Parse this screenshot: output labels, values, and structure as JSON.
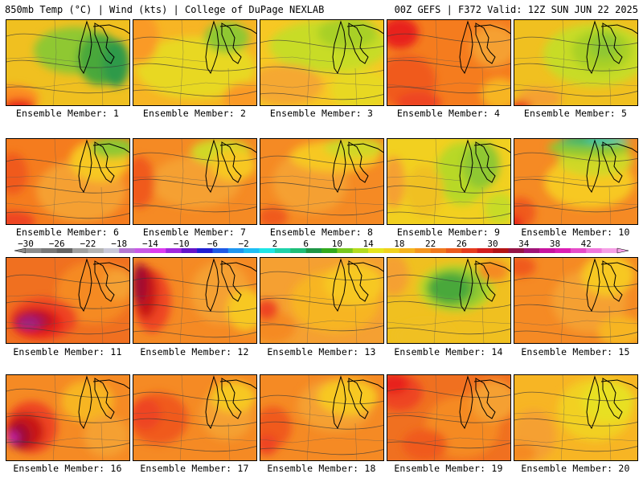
{
  "header": {
    "left": "850mb Temp (°C) | Wind (kts) | College of DuPage NEXLAB",
    "right": "00Z GEFS | F372 Valid: 12Z SUN JUN 22 2025"
  },
  "member_label_prefix": "Ensemble Member: ",
  "members": [
    {
      "number": 1,
      "base": "#f0c020",
      "blobs": [
        [
          "#8fc830",
          0.55,
          0.35,
          0.55,
          0.45
        ],
        [
          "#4aa83a",
          0.75,
          0.45,
          0.3,
          0.5
        ],
        [
          "#2f9a4a",
          0.88,
          0.5,
          0.18,
          0.45
        ],
        [
          "#fc8c20",
          0.05,
          0.9,
          0.35,
          0.25
        ],
        [
          "#e8221a",
          0.1,
          1.0,
          0.22,
          0.15
        ]
      ]
    },
    {
      "number": 2,
      "base": "#f7b524",
      "blobs": [
        [
          "#b8d828",
          0.55,
          0.5,
          0.55,
          0.45
        ],
        [
          "#e8d820",
          0.5,
          0.55,
          0.8,
          0.6
        ],
        [
          "#8fc830",
          0.75,
          0.2,
          0.3,
          0.3
        ],
        [
          "#fa9a28",
          0.05,
          0.2,
          0.25,
          0.5
        ],
        [
          "#fa9a28",
          0.9,
          0.9,
          0.3,
          0.3
        ]
      ]
    },
    {
      "number": 3,
      "base": "#f7c824",
      "blobs": [
        [
          "#c8dc28",
          0.55,
          0.3,
          0.8,
          0.5
        ],
        [
          "#a8d028",
          0.7,
          0.15,
          0.4,
          0.3
        ],
        [
          "#f5a832",
          0.2,
          0.75,
          0.5,
          0.4
        ],
        [
          "#e8d820",
          0.8,
          0.8,
          0.4,
          0.4
        ]
      ]
    },
    {
      "number": 4,
      "base": "#f57c1e",
      "blobs": [
        [
          "#f05a1e",
          0.15,
          0.7,
          0.4,
          0.5
        ],
        [
          "#e8221a",
          0.1,
          0.15,
          0.25,
          0.3
        ],
        [
          "#f5a032",
          0.85,
          0.3,
          0.3,
          0.4
        ],
        [
          "#f7b524",
          0.9,
          0.85,
          0.25,
          0.3
        ],
        [
          "#ee4420",
          0.25,
          0.95,
          0.3,
          0.2
        ]
      ]
    },
    {
      "number": 5,
      "base": "#f0c020",
      "blobs": [
        [
          "#c8dc28",
          0.65,
          0.4,
          0.7,
          0.6
        ],
        [
          "#a8d028",
          0.7,
          0.35,
          0.4,
          0.4
        ],
        [
          "#8fc830",
          0.72,
          0.3,
          0.2,
          0.25
        ],
        [
          "#f5a032",
          0.2,
          0.9,
          0.3,
          0.2
        ],
        [
          "#e8221a",
          0.05,
          1.0,
          0.15,
          0.1
        ]
      ]
    },
    {
      "number": 6,
      "base": "#f57c1e",
      "blobs": [
        [
          "#f5a032",
          0.6,
          0.6,
          0.6,
          0.6
        ],
        [
          "#f7c824",
          0.75,
          0.25,
          0.4,
          0.4
        ],
        [
          "#8fc830",
          0.85,
          0.1,
          0.3,
          0.2
        ],
        [
          "#f05a1e",
          0.05,
          0.4,
          0.2,
          0.4
        ],
        [
          "#ee4420",
          0.05,
          0.95,
          0.3,
          0.2
        ]
      ]
    },
    {
      "number": 7,
      "base": "#f58a24",
      "blobs": [
        [
          "#f5a032",
          0.5,
          0.5,
          0.6,
          0.5
        ],
        [
          "#d0d828",
          0.7,
          0.15,
          0.4,
          0.25
        ],
        [
          "#f7c824",
          0.8,
          0.3,
          0.3,
          0.3
        ],
        [
          "#f05a1e",
          0.05,
          0.5,
          0.2,
          0.5
        ]
      ]
    },
    {
      "number": 8,
      "base": "#f58a24",
      "blobs": [
        [
          "#f5a032",
          0.4,
          0.5,
          0.5,
          0.6
        ],
        [
          "#f7c824",
          0.6,
          0.2,
          0.6,
          0.3
        ],
        [
          "#d0d828",
          0.75,
          0.1,
          0.4,
          0.2
        ],
        [
          "#f05a1e",
          0.1,
          0.9,
          0.2,
          0.2
        ]
      ]
    },
    {
      "number": 9,
      "base": "#f2d020",
      "blobs": [
        [
          "#b8d828",
          0.6,
          0.4,
          0.35,
          0.6
        ],
        [
          "#8fc830",
          0.75,
          0.3,
          0.25,
          0.45
        ],
        [
          "#f5a032",
          0.05,
          0.5,
          0.15,
          0.5
        ],
        [
          "#f0c020",
          0.3,
          0.6,
          0.25,
          0.5
        ],
        [
          "#c8dc28",
          0.9,
          0.8,
          0.2,
          0.3
        ]
      ]
    },
    {
      "number": 10,
      "base": "#f58a24",
      "blobs": [
        [
          "#f7c824",
          0.6,
          0.5,
          0.6,
          0.5
        ],
        [
          "#d0d828",
          0.65,
          0.25,
          0.5,
          0.3
        ],
        [
          "#8fc830",
          0.6,
          0.1,
          0.55,
          0.18
        ],
        [
          "#2fb870",
          0.6,
          0.02,
          0.4,
          0.1
        ],
        [
          "#20d8d8",
          0.75,
          0.0,
          0.3,
          0.05
        ],
        [
          "#f05a1e",
          0.05,
          0.85,
          0.2,
          0.3
        ],
        [
          "#e8221a",
          0.0,
          1.0,
          0.1,
          0.2
        ]
      ]
    },
    {
      "number": 11,
      "base": "#f07020",
      "blobs": [
        [
          "#f58a24",
          0.7,
          0.4,
          0.5,
          0.6
        ],
        [
          "#ee4420",
          0.3,
          0.7,
          0.45,
          0.4
        ],
        [
          "#e8221a",
          0.25,
          0.75,
          0.35,
          0.3
        ],
        [
          "#c81818",
          0.22,
          0.72,
          0.28,
          0.22
        ],
        [
          "#b01040",
          0.22,
          0.72,
          0.2,
          0.15
        ],
        [
          "#a02080",
          0.18,
          0.75,
          0.16,
          0.12
        ],
        [
          "#f5a032",
          0.9,
          0.3,
          0.2,
          0.3
        ]
      ]
    },
    {
      "number": 12,
      "base": "#f58a24",
      "blobs": [
        [
          "#ee4420",
          0.15,
          0.5,
          0.25,
          0.6
        ],
        [
          "#c81818",
          0.1,
          0.4,
          0.15,
          0.5
        ],
        [
          "#a01030",
          0.05,
          0.3,
          0.1,
          0.4
        ],
        [
          "#f5a032",
          0.7,
          0.4,
          0.4,
          0.6
        ],
        [
          "#f7c824",
          0.9,
          0.6,
          0.25,
          0.4
        ]
      ]
    },
    {
      "number": 13,
      "base": "#f5a032",
      "blobs": [
        [
          "#f7b524",
          0.6,
          0.5,
          0.6,
          0.6
        ],
        [
          "#f7c824",
          0.75,
          0.3,
          0.4,
          0.4
        ],
        [
          "#f58a24",
          0.1,
          0.8,
          0.3,
          0.3
        ],
        [
          "#ee4420",
          0.05,
          0.6,
          0.15,
          0.2
        ]
      ]
    },
    {
      "number": 14,
      "base": "#f0c020",
      "blobs": [
        [
          "#b8d828",
          0.55,
          0.35,
          0.5,
          0.45
        ],
        [
          "#8fc830",
          0.55,
          0.35,
          0.4,
          0.38
        ],
        [
          "#4aa83a",
          0.5,
          0.35,
          0.3,
          0.3
        ],
        [
          "#f5a032",
          0.05,
          0.2,
          0.2,
          0.4
        ],
        [
          "#f58a24",
          0.85,
          0.15,
          0.2,
          0.2
        ],
        [
          "#f0c020",
          0.3,
          0.9,
          0.4,
          0.3
        ]
      ]
    },
    {
      "number": 15,
      "base": "#f58a24",
      "blobs": [
        [
          "#f5a032",
          0.6,
          0.5,
          0.5,
          0.6
        ],
        [
          "#f7c824",
          0.75,
          0.2,
          0.35,
          0.4
        ],
        [
          "#f05a1e",
          0.05,
          0.1,
          0.2,
          0.2
        ],
        [
          "#f7b524",
          0.85,
          0.85,
          0.3,
          0.3
        ]
      ]
    },
    {
      "number": 16,
      "base": "#f58a24",
      "blobs": [
        [
          "#ee4420",
          0.2,
          0.6,
          0.35,
          0.5
        ],
        [
          "#c81818",
          0.15,
          0.65,
          0.25,
          0.35
        ],
        [
          "#a01030",
          0.1,
          0.7,
          0.15,
          0.25
        ],
        [
          "#c020a0",
          0.05,
          0.72,
          0.08,
          0.12
        ],
        [
          "#f7b524",
          0.65,
          0.3,
          0.35,
          0.4
        ],
        [
          "#f5a032",
          0.8,
          0.7,
          0.3,
          0.4
        ]
      ]
    },
    {
      "number": 17,
      "base": "#f58a24",
      "blobs": [
        [
          "#f05a1e",
          0.2,
          0.5,
          0.4,
          0.5
        ],
        [
          "#ee4420",
          0.1,
          0.45,
          0.2,
          0.3
        ],
        [
          "#f5a032",
          0.75,
          0.45,
          0.35,
          0.5
        ],
        [
          "#f7c824",
          0.8,
          0.25,
          0.3,
          0.3
        ]
      ]
    },
    {
      "number": 18,
      "base": "#f58a24",
      "blobs": [
        [
          "#f05a1e",
          0.1,
          0.6,
          0.25,
          0.4
        ],
        [
          "#f5a032",
          0.6,
          0.35,
          0.5,
          0.5
        ],
        [
          "#f7c824",
          0.7,
          0.25,
          0.4,
          0.35
        ],
        [
          "#ee4420",
          0.05,
          0.8,
          0.15,
          0.2
        ]
      ]
    },
    {
      "number": 19,
      "base": "#f07020",
      "blobs": [
        [
          "#ee4420",
          0.1,
          0.2,
          0.3,
          0.35
        ],
        [
          "#e8221a",
          0.05,
          0.1,
          0.2,
          0.2
        ],
        [
          "#f58a24",
          0.6,
          0.6,
          0.5,
          0.6
        ],
        [
          "#f5a032",
          0.85,
          0.3,
          0.3,
          0.4
        ],
        [
          "#f05a1e",
          0.3,
          0.8,
          0.3,
          0.3
        ]
      ]
    },
    {
      "number": 20,
      "base": "#f7b524",
      "blobs": [
        [
          "#f2d020",
          0.65,
          0.4,
          0.5,
          0.6
        ],
        [
          "#e8e020",
          0.75,
          0.3,
          0.35,
          0.4
        ],
        [
          "#f5a032",
          0.15,
          0.7,
          0.3,
          0.5
        ],
        [
          "#f58a24",
          0.05,
          0.9,
          0.2,
          0.2
        ]
      ]
    }
  ],
  "colorbar": {
    "tick_labels": [
      "−30",
      "−26",
      "−22",
      "−18",
      "−14",
      "−10",
      "−6",
      "−2",
      "2",
      "6",
      "10",
      "14",
      "18",
      "22",
      "26",
      "30",
      "34",
      "38",
      "42"
    ],
    "colors": [
      "#8c8c8c",
      "#787878",
      "#646464",
      "#a0a0a0",
      "#b4b4b4",
      "#c8c8d8",
      "#b478d2",
      "#c85ae6",
      "#dc3cf0",
      "#a028dc",
      "#6414c8",
      "#1e1ed2",
      "#1e5ae6",
      "#1e96f0",
      "#1ebef5",
      "#1ee6e6",
      "#1ed2aa",
      "#1ebe78",
      "#1e9646",
      "#32aa1e",
      "#78c81e",
      "#b4dc1e",
      "#e6e61e",
      "#f0d21e",
      "#f5b41e",
      "#f5961e",
      "#f0781e",
      "#eb5a1e",
      "#e63c1e",
      "#d21e1e",
      "#b41414",
      "#961446",
      "#a01478",
      "#c814a0",
      "#dc1eb4",
      "#e64bc8",
      "#f078dc",
      "#f5a0e6"
    ]
  }
}
